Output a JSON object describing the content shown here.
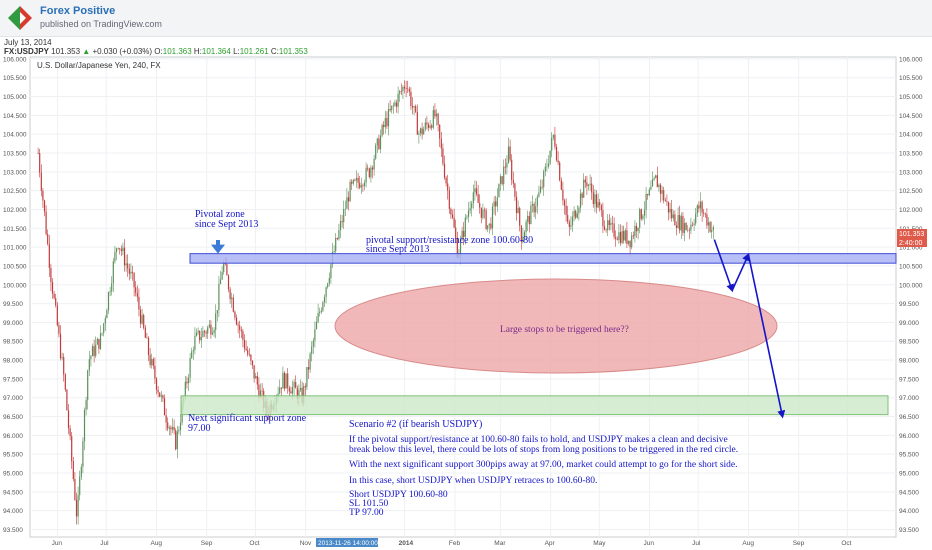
{
  "header": {
    "app_title": "Forex Positive",
    "app_subtitle": "published on TradingView.com"
  },
  "quote": {
    "date": "July 13, 2014",
    "symbol": "FX:USDJPY",
    "last": "101.353",
    "change": "+0.030 (+0.03%)",
    "o_label": "O:",
    "o_val": "101.363",
    "h_label": "H:",
    "h_val": "101.364",
    "l_label": "L:",
    "l_val": "101.261",
    "c_label": "C:",
    "c_val": "101.353"
  },
  "colors": {
    "accent": "#2a6fb5",
    "up_candle": "#5a8f5a",
    "down_candle": "#c03a3a",
    "annotation_blue": "#1414c8",
    "pivot_zone_fill": "#aab4f5",
    "support_zone_fill": "#cde8c8",
    "red_circle_fill": "#eca6a6",
    "price_badge": "#e05a4a"
  },
  "chart_data": {
    "type": "candlestick",
    "title": "U.S. Dollar/Japanese Yen, 240, FX",
    "ylim": [
      93.3,
      106.05
    ],
    "yticks": [
      "93.500",
      "94.000",
      "94.500",
      "95.000",
      "95.500",
      "96.000",
      "96.500",
      "97.000",
      "97.500",
      "98.000",
      "98.500",
      "99.000",
      "99.500",
      "100.000",
      "100.500",
      "101.000",
      "101.500",
      "102.000",
      "102.500",
      "103.000",
      "103.500",
      "104.000",
      "104.500",
      "105.000",
      "105.500",
      "106.000"
    ],
    "xticks": [
      "Jun",
      "Jul",
      "Aug",
      "Sep",
      "Oct",
      "Nov",
      "2014",
      "Feb",
      "Mar",
      "Apr",
      "May",
      "Jun",
      "Jul",
      "Aug",
      "Sep",
      "Oct"
    ],
    "cursor_label": "2013-11-26 14:00:00",
    "price_badges": [
      "101.353",
      "2:40:00"
    ],
    "price_path": [
      {
        "x": "2013-05-20",
        "y": 103.5
      },
      {
        "x": "2013-05-28",
        "y": 100.2
      },
      {
        "x": "2013-06-05",
        "y": 97.5
      },
      {
        "x": "2013-06-13",
        "y": 93.8
      },
      {
        "x": "2013-06-20",
        "y": 98.0
      },
      {
        "x": "2013-06-28",
        "y": 98.6
      },
      {
        "x": "2013-07-08",
        "y": 101.2
      },
      {
        "x": "2013-07-18",
        "y": 100.0
      },
      {
        "x": "2013-07-28",
        "y": 98.0
      },
      {
        "x": "2013-08-07",
        "y": 96.5
      },
      {
        "x": "2013-08-13",
        "y": 95.8
      },
      {
        "x": "2013-08-24",
        "y": 98.5
      },
      {
        "x": "2013-09-06",
        "y": 99.0
      },
      {
        "x": "2013-09-11",
        "y": 100.6
      },
      {
        "x": "2013-09-20",
        "y": 99.0
      },
      {
        "x": "2013-10-01",
        "y": 97.5
      },
      {
        "x": "2013-10-08",
        "y": 96.6
      },
      {
        "x": "2013-10-18",
        "y": 97.5
      },
      {
        "x": "2013-10-30",
        "y": 97.0
      },
      {
        "x": "2013-11-08",
        "y": 99.0
      },
      {
        "x": "2013-11-18",
        "y": 100.8
      },
      {
        "x": "2013-11-28",
        "y": 102.5
      },
      {
        "x": "2013-12-10",
        "y": 103.0
      },
      {
        "x": "2013-12-20",
        "y": 104.3
      },
      {
        "x": "2014-01-02",
        "y": 105.4
      },
      {
        "x": "2014-01-10",
        "y": 104.0
      },
      {
        "x": "2014-01-20",
        "y": 104.5
      },
      {
        "x": "2014-02-03",
        "y": 100.8
      },
      {
        "x": "2014-02-12",
        "y": 102.5
      },
      {
        "x": "2014-02-22",
        "y": 101.5
      },
      {
        "x": "2014-03-06",
        "y": 103.5
      },
      {
        "x": "2014-03-14",
        "y": 101.3
      },
      {
        "x": "2014-03-26",
        "y": 102.5
      },
      {
        "x": "2014-04-03",
        "y": 104.0
      },
      {
        "x": "2014-04-12",
        "y": 101.4
      },
      {
        "x": "2014-04-23",
        "y": 102.8
      },
      {
        "x": "2014-05-06",
        "y": 101.5
      },
      {
        "x": "2014-05-20",
        "y": 101.2
      },
      {
        "x": "2014-06-05",
        "y": 102.8
      },
      {
        "x": "2014-06-15",
        "y": 101.8
      },
      {
        "x": "2014-06-25",
        "y": 101.5
      },
      {
        "x": "2014-07-02",
        "y": 102.1
      },
      {
        "x": "2014-07-11",
        "y": 101.35
      }
    ],
    "zones": [
      {
        "name": "pivotal support/resistance zone",
        "from": 100.6,
        "to": 100.8
      },
      {
        "name": "next significant support zone",
        "from": 96.55,
        "to": 97.05
      }
    ],
    "projection": [
      {
        "x": "2014-07-11",
        "y": 101.2
      },
      {
        "x": "2014-07-22",
        "y": 99.85
      },
      {
        "x": "2014-08-01",
        "y": 100.8
      },
      {
        "x": "2014-08-22",
        "y": 96.5
      }
    ]
  },
  "annotations": {
    "pivotal_zone_1": "Pivotal zone",
    "pivotal_zone_2": "since Sept 2013",
    "pivot_sr_1": "pivotal support/resistance zone 100.60-80",
    "pivot_sr_2": "since Sept 2013",
    "red_circle": "Large stops to be triggered here??",
    "next_support_1": "Next significant support zone",
    "next_support_2": "97.00",
    "scenario": "Scenario #2 (if bearish USDJPY)",
    "para1_1": "If the pivotal support/resistance at 100.60-80 fails to hold, and USDJPY makes a clean and decisive",
    "para1_2": "break below this level, there could be lots of stops from long positions to be triggered in the red circle.",
    "para2": "With the next significant support 300pips away at 97.00, market could attempt to go for the short side.",
    "para3": "In this case, short USDJPY when USDJPY retraces to 100.60-80.",
    "trade1": "Short USDJPY 100.60-80",
    "trade2": "SL 101.50",
    "trade3": "TP 97.00"
  }
}
